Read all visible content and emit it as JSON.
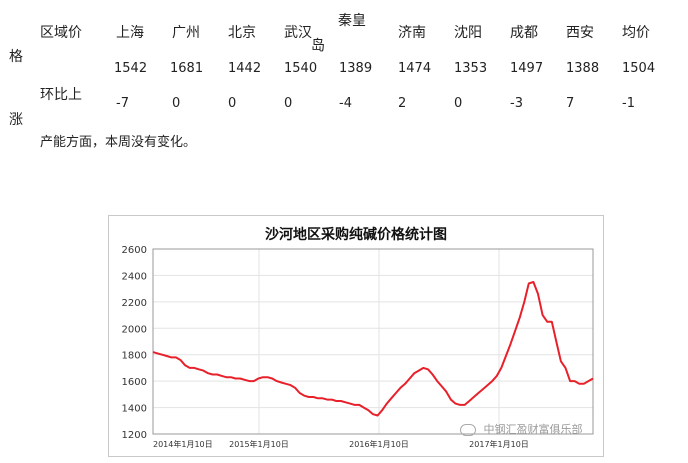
{
  "table": {
    "side_labels": [
      "格",
      "涨"
    ],
    "row_headers": [
      "区域价",
      "环比上"
    ],
    "headers": [
      "上海",
      "广州",
      "北京",
      "武汉",
      "秦皇",
      "济南",
      "沈阳",
      "成都",
      "西安",
      "均价"
    ],
    "header_suffix": "岛",
    "prices": [
      "1542",
      "1681",
      "1442",
      "1540",
      "1389",
      "1474",
      "1353",
      "1497",
      "1388",
      "1504"
    ],
    "changes": [
      "-7",
      "0",
      "0",
      "0",
      "-4",
      "2",
      "0",
      "-3",
      "7",
      "-1"
    ]
  },
  "note": "产能方面，本周没有变化。",
  "watermark": "中钢汇盈财富俱乐部",
  "chart_data": {
    "type": "line",
    "title": "沙河地区采购纯碱价格统计图",
    "ylim": [
      1200,
      2600
    ],
    "yticks": [
      1200,
      1400,
      1600,
      1800,
      2000,
      2200,
      2400,
      2600
    ],
    "xticks": [
      "2014年1月10日",
      "2015年1月10日",
      "2016年1月10日",
      "2017年1月10日"
    ],
    "color": "#e8202a",
    "series": [
      {
        "values": [
          1820,
          1810,
          1800,
          1790,
          1780,
          1780,
          1760,
          1720,
          1700,
          1700,
          1690,
          1680,
          1660,
          1650,
          1650,
          1640,
          1630,
          1630,
          1620,
          1620,
          1610,
          1600,
          1600,
          1620,
          1630,
          1630,
          1620,
          1600,
          1590,
          1580,
          1570,
          1550,
          1510,
          1490,
          1480,
          1480,
          1470,
          1470,
          1460,
          1460,
          1450,
          1450,
          1440,
          1430,
          1420,
          1420,
          1400,
          1380,
          1350,
          1340,
          1380,
          1430,
          1470,
          1510,
          1550,
          1580,
          1620,
          1660,
          1680,
          1700,
          1690,
          1650,
          1600,
          1560,
          1520,
          1460,
          1430,
          1420,
          1420,
          1450,
          1480,
          1510,
          1540,
          1570,
          1600,
          1640,
          1700,
          1790,
          1880,
          1980,
          2080,
          2200,
          2340,
          2350,
          2260,
          2100,
          2050,
          2050,
          1900,
          1750,
          1700,
          1600,
          1600,
          1580,
          1580,
          1600,
          1620
        ]
      }
    ]
  }
}
